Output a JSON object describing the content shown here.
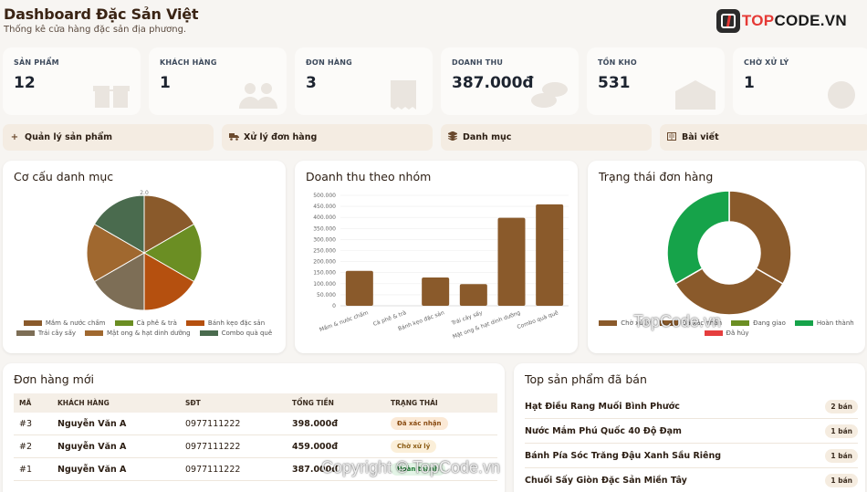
{
  "header": {
    "title": "Dashboard Đặc Sản Việt",
    "subtitle": "Thống kê cửa hàng đặc sản địa phương."
  },
  "logo": {
    "text_prefix": "",
    "text_red": "TOP",
    "text_main": "CODE.VN"
  },
  "stats": [
    {
      "label": "SẢN PHẨM",
      "value": "12",
      "icon": "gift-icon"
    },
    {
      "label": "KHÁCH HÀNG",
      "value": "1",
      "icon": "users-icon"
    },
    {
      "label": "ĐƠN HÀNG",
      "value": "3",
      "icon": "receipt-icon"
    },
    {
      "label": "DOANH THU",
      "value": "387.000đ",
      "icon": "coins-icon"
    },
    {
      "label": "TỒN KHO",
      "value": "531",
      "icon": "warehouse-icon"
    },
    {
      "label": "CHỜ XỬ LÝ",
      "value": "1",
      "icon": "clock-icon"
    }
  ],
  "actions": [
    {
      "label": "Quản lý sản phẩm",
      "icon": "plus-icon"
    },
    {
      "label": "Xử lý đơn hàng",
      "icon": "truck-icon"
    },
    {
      "label": "Danh mục",
      "icon": "layers-icon"
    },
    {
      "label": "Bài viết",
      "icon": "book-icon"
    }
  ],
  "pie_card": {
    "title": "Cơ cấu danh mục"
  },
  "bar_card": {
    "title": "Doanh thu theo nhóm"
  },
  "donut_card": {
    "title": "Trạng thái đơn hàng"
  },
  "orders_card": {
    "title": "Đơn hàng mới",
    "columns": [
      "MÃ",
      "KHÁCH HÀNG",
      "SĐT",
      "TỔNG TIỀN",
      "TRẠNG THÁI"
    ],
    "rows": [
      {
        "id": "#3",
        "customer": "Nguyễn Văn A",
        "phone": "0977111222",
        "total": "398.000đ",
        "status": "Đã xác nhận"
      },
      {
        "id": "#2",
        "customer": "Nguyễn Văn A",
        "phone": "0977111222",
        "total": "459.000đ",
        "status": "Chờ xử lý"
      },
      {
        "id": "#1",
        "customer": "Nguyễn Văn A",
        "phone": "0977111222",
        "total": "387.000đ",
        "status": "Hoàn thành"
      }
    ]
  },
  "top_card": {
    "title": "Top sản phẩm đã bán",
    "items": [
      {
        "name": "Hạt Điều Rang Muối Bình Phước",
        "count": "2 bán"
      },
      {
        "name": "Nước Mắm Phú Quốc 40 Độ Đạm",
        "count": "1 bán"
      },
      {
        "name": "Bánh Pía Sóc Trăng Đậu Xanh Sầu Riêng",
        "count": "1 bán"
      },
      {
        "name": "Chuối Sấy Giòn Đặc Sản Miền Tây",
        "count": "1 bán"
      }
    ]
  },
  "watermarks": {
    "center": "TopCode.vn",
    "bottom": "Copyright © TopCode.vn"
  },
  "chart_data": [
    {
      "type": "pie",
      "title": "Cơ cấu danh mục",
      "categories": [
        "Mắm & nước chấm",
        "Cà phê & trà",
        "Bánh kẹo đặc sản",
        "Trái cây sấy",
        "Mật ong & hạt dinh dưỡng",
        "Combo quà quê"
      ],
      "values": [
        2,
        2,
        2,
        2,
        2,
        2
      ],
      "colors": [
        "#8a5a2b",
        "#6b8e23",
        "#b5500f",
        "#7d6e56",
        "#a0682f",
        "#4a6b4e"
      ],
      "top_label": "2.0"
    },
    {
      "type": "bar",
      "title": "Doanh thu theo nhóm",
      "categories": [
        "Mắm & nước chấm",
        "Cà phê & trà",
        "Bánh kẹo đặc sản",
        "Trái cây sấy",
        "Mật ong & hạt dinh dưỡng",
        "Combo quà quê"
      ],
      "values": [
        158000,
        0,
        128000,
        98000,
        398000,
        459000
      ],
      "ylim": [
        0,
        500000
      ],
      "yticks": [
        "0",
        "50.000",
        "100.000",
        "150.000",
        "200.000",
        "250.000",
        "300.000",
        "350.000",
        "400.000",
        "450.000",
        "500.000"
      ],
      "color": "#8a5a2b"
    },
    {
      "type": "pie",
      "title": "Trạng thái đơn hàng",
      "categories": [
        "Chờ xử lý",
        "Đã xác nhận",
        "Đang giao",
        "Hoàn thành",
        "Đã hủy"
      ],
      "values": [
        1,
        1,
        0,
        1,
        0
      ],
      "colors": [
        "#8a5a2b",
        "#8a5a2b",
        "#6b8e23",
        "#16a34a",
        "#e53e3e"
      ]
    }
  ]
}
